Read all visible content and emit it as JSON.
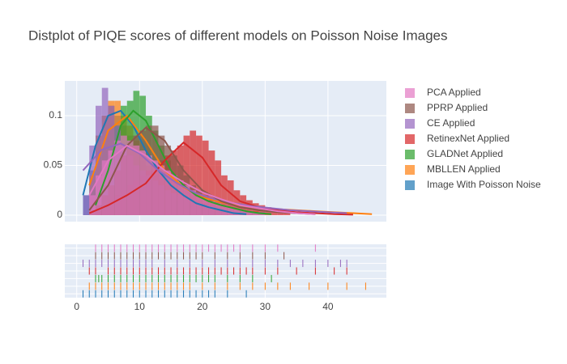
{
  "chart_data": {
    "type": "distplot",
    "title": "Distplot of PIQE scores of different models on Poisson Noise Images",
    "xlim": [
      -1.9,
      49.3
    ],
    "xticks": [
      0,
      10,
      20,
      30,
      40
    ],
    "ylim": [
      -0.0065,
      0.135
    ],
    "yticks": [
      0,
      0.05,
      0.1
    ],
    "grid": true,
    "legend": "right",
    "series": [
      {
        "name": "PCA Applied",
        "color": "#e377c2",
        "bins": [
          2,
          3,
          4,
          5,
          6,
          7,
          8,
          9,
          10,
          11,
          12,
          13,
          14,
          15,
          16,
          17,
          18,
          19,
          20,
          21,
          22,
          23,
          24,
          25,
          26,
          27,
          28,
          29,
          30
        ],
        "values": [
          0.02,
          0.04,
          0.055,
          0.065,
          0.075,
          0.08,
          0.075,
          0.07,
          0.065,
          0.06,
          0.055,
          0.05,
          0.045,
          0.04,
          0.035,
          0.03,
          0.025,
          0.02,
          0.017,
          0.014,
          0.012,
          0.01,
          0.008,
          0.006,
          0.005,
          0.004,
          0.003,
          0.002
        ],
        "curve_x": [
          2,
          5,
          8,
          11,
          14,
          17,
          20,
          23,
          26,
          29,
          32,
          35,
          38
        ],
        "curve_y": [
          0.02,
          0.055,
          0.07,
          0.06,
          0.045,
          0.033,
          0.023,
          0.016,
          0.01,
          0.007,
          0.004,
          0.002,
          0.001
        ],
        "rug": [
          3,
          4,
          5,
          6,
          7,
          8,
          9,
          10,
          11,
          12,
          13,
          14,
          15,
          16,
          17,
          18,
          19,
          20,
          21,
          22,
          23,
          24,
          25,
          26,
          28,
          30,
          32,
          38
        ]
      },
      {
        "name": "PPRP Applied",
        "color": "#8c564b",
        "bins": [
          2,
          3,
          4,
          5,
          6,
          7,
          8,
          9,
          10,
          11,
          12,
          13,
          14,
          15,
          16,
          17,
          18,
          19,
          20,
          21,
          22,
          23,
          24,
          25,
          26,
          27,
          28,
          29,
          30
        ],
        "values": [
          0.005,
          0.01,
          0.02,
          0.03,
          0.045,
          0.06,
          0.07,
          0.08,
          0.085,
          0.09,
          0.09,
          0.08,
          0.07,
          0.06,
          0.05,
          0.04,
          0.03,
          0.025,
          0.02,
          0.015,
          0.012,
          0.01,
          0.008,
          0.006,
          0.005,
          0.004,
          0.003,
          0.002
        ],
        "curve_x": [
          2,
          5,
          8,
          11,
          14,
          17,
          20,
          23,
          26,
          29,
          32,
          35,
          38
        ],
        "curve_y": [
          0.005,
          0.03,
          0.07,
          0.088,
          0.075,
          0.045,
          0.025,
          0.014,
          0.008,
          0.005,
          0.003,
          0.002,
          0.001
        ],
        "rug": [
          3,
          4,
          5,
          6,
          7,
          8,
          9,
          10,
          11,
          12,
          13,
          14,
          15,
          16,
          17,
          18,
          19,
          20,
          22,
          24,
          26,
          28,
          30,
          33
        ]
      },
      {
        "name": "CE Applied",
        "color": "#9467bd",
        "bins": [
          1,
          2,
          3,
          4,
          5,
          6,
          7,
          8,
          9,
          10,
          11,
          12,
          13,
          14,
          15,
          16,
          17,
          18,
          19,
          20,
          21,
          22,
          23,
          24,
          25,
          26,
          27,
          28,
          29,
          30
        ],
        "values": [
          0.02,
          0.07,
          0.11,
          0.128,
          0.11,
          0.09,
          0.07,
          0.06,
          0.05,
          0.045,
          0.04,
          0.035,
          0.03,
          0.025,
          0.022,
          0.02,
          0.018,
          0.015,
          0.012,
          0.01,
          0.009,
          0.008,
          0.007,
          0.006,
          0.005,
          0.004,
          0.004,
          0.003,
          0.003
        ],
        "curve_x": [
          1,
          4,
          7,
          10,
          13,
          16,
          19,
          22,
          25,
          28,
          31,
          34,
          37,
          40,
          43
        ],
        "curve_y": [
          0.045,
          0.066,
          0.072,
          0.062,
          0.045,
          0.032,
          0.022,
          0.016,
          0.012,
          0.009,
          0.007,
          0.005,
          0.004,
          0.003,
          0.002
        ],
        "rug": [
          1,
          2,
          3,
          4,
          5,
          6,
          7,
          8,
          9,
          10,
          11,
          12,
          14,
          16,
          18,
          20,
          22,
          24,
          26,
          28,
          30,
          32,
          34,
          36,
          38,
          40,
          42,
          43
        ]
      },
      {
        "name": "RetinexNet Applied",
        "color": "#d62728",
        "bins": [
          3,
          4,
          5,
          6,
          7,
          8,
          9,
          10,
          11,
          12,
          13,
          14,
          15,
          16,
          17,
          18,
          19,
          20,
          21,
          22,
          23,
          24,
          25,
          26,
          27,
          28,
          29,
          30,
          31,
          32,
          33,
          34
        ],
        "values": [
          0.005,
          0.01,
          0.015,
          0.02,
          0.025,
          0.03,
          0.035,
          0.04,
          0.045,
          0.05,
          0.055,
          0.06,
          0.065,
          0.07,
          0.08,
          0.085,
          0.08,
          0.075,
          0.065,
          0.055,
          0.04,
          0.035,
          0.025,
          0.02,
          0.015,
          0.012,
          0.01,
          0.008,
          0.006,
          0.004,
          0.003
        ],
        "curve_x": [
          2,
          5,
          8,
          11,
          14,
          17,
          20,
          23,
          26,
          29,
          32,
          35,
          38,
          41,
          44
        ],
        "curve_y": [
          0.002,
          0.01,
          0.02,
          0.032,
          0.055,
          0.073,
          0.058,
          0.03,
          0.014,
          0.008,
          0.005,
          0.003,
          0.002,
          0.001,
          0.0005
        ],
        "rug": [
          2,
          3,
          5,
          6,
          7,
          8,
          9,
          10,
          11,
          12,
          13,
          14,
          15,
          16,
          17,
          18,
          19,
          20,
          21,
          22,
          23,
          24,
          25,
          26,
          27,
          28,
          30,
          32,
          35,
          38,
          41,
          43
        ]
      },
      {
        "name": "GLADNet Applied",
        "color": "#2ca02c",
        "bins": [
          3,
          4,
          5,
          6,
          7,
          8,
          9,
          10,
          11,
          12,
          13,
          14,
          15,
          16,
          17,
          18,
          19,
          20,
          21,
          22,
          23,
          24,
          25,
          26,
          27,
          28
        ],
        "values": [
          0.01,
          0.03,
          0.06,
          0.09,
          0.11,
          0.115,
          0.125,
          0.12,
          0.1,
          0.085,
          0.07,
          0.055,
          0.04,
          0.03,
          0.025,
          0.02,
          0.015,
          0.012,
          0.01,
          0.008,
          0.006,
          0.005,
          0.004,
          0.003,
          0.002
        ],
        "curve_x": [
          3,
          5,
          7,
          9,
          11,
          13,
          15,
          17,
          19,
          21,
          23,
          25,
          27,
          29,
          31
        ],
        "curve_y": [
          0.01,
          0.045,
          0.09,
          0.105,
          0.095,
          0.07,
          0.045,
          0.03,
          0.02,
          0.014,
          0.01,
          0.007,
          0.004,
          0.002,
          0.001
        ],
        "rug": [
          3,
          3.5,
          4,
          5,
          6,
          7,
          8,
          9,
          10,
          11,
          12,
          13,
          14,
          15,
          16,
          17,
          18,
          19,
          20,
          21,
          22,
          24,
          26,
          28,
          31
        ]
      },
      {
        "name": "MBLLEN Applied",
        "color": "#ff7f0e",
        "bins": [
          2,
          3,
          4,
          5,
          6,
          7,
          8,
          9,
          10,
          11,
          12,
          13,
          14,
          15,
          16,
          17,
          18,
          19,
          20,
          21,
          22,
          23,
          24,
          25,
          26,
          27,
          28,
          29,
          30
        ],
        "values": [
          0.04,
          0.08,
          0.1,
          0.115,
          0.115,
          0.1,
          0.09,
          0.075,
          0.06,
          0.05,
          0.04,
          0.035,
          0.03,
          0.025,
          0.02,
          0.017,
          0.014,
          0.012,
          0.01,
          0.009,
          0.008,
          0.007,
          0.006,
          0.005,
          0.005,
          0.004,
          0.004,
          0.003
        ],
        "curve_x": [
          2,
          5,
          8,
          11,
          14,
          17,
          20,
          23,
          26,
          29,
          32,
          35,
          38,
          41,
          44,
          47
        ],
        "curve_y": [
          0.03,
          0.085,
          0.1,
          0.075,
          0.045,
          0.028,
          0.018,
          0.013,
          0.01,
          0.008,
          0.006,
          0.005,
          0.004,
          0.003,
          0.002,
          0.001
        ],
        "rug": [
          2,
          3,
          4,
          5,
          6,
          7,
          8,
          9,
          10,
          11,
          12,
          13,
          14,
          15,
          16,
          17,
          18,
          20,
          22,
          24,
          26,
          28,
          30,
          32,
          34,
          37,
          40,
          43,
          46
        ]
      },
      {
        "name": "Image With Poisson Noise",
        "color": "#1f77b4",
        "bins": [
          1,
          2,
          3,
          4,
          5,
          6,
          7,
          8,
          9,
          10,
          11,
          12,
          13,
          14,
          15,
          16,
          17,
          18,
          19,
          20,
          21,
          22
        ],
        "values": [
          0.02,
          0.045,
          0.08,
          0.1,
          0.11,
          0.1,
          0.09,
          0.08,
          0.07,
          0.055,
          0.045,
          0.035,
          0.03,
          0.02,
          0.015,
          0.012,
          0.01,
          0.007,
          0.005,
          0.003,
          0.002
        ],
        "curve_x": [
          1,
          3,
          5,
          7,
          9,
          11,
          13,
          15,
          17,
          19,
          21,
          23,
          25,
          27
        ],
        "curve_y": [
          0.02,
          0.07,
          0.1,
          0.105,
          0.09,
          0.065,
          0.045,
          0.03,
          0.02,
          0.012,
          0.008,
          0.005,
          0.002,
          0.001
        ],
        "rug": [
          1,
          2,
          3,
          4,
          5,
          6,
          7,
          8,
          9,
          10,
          11,
          12,
          13,
          14,
          15,
          16,
          17,
          18,
          19,
          20,
          21,
          22,
          24,
          27
        ]
      }
    ]
  }
}
